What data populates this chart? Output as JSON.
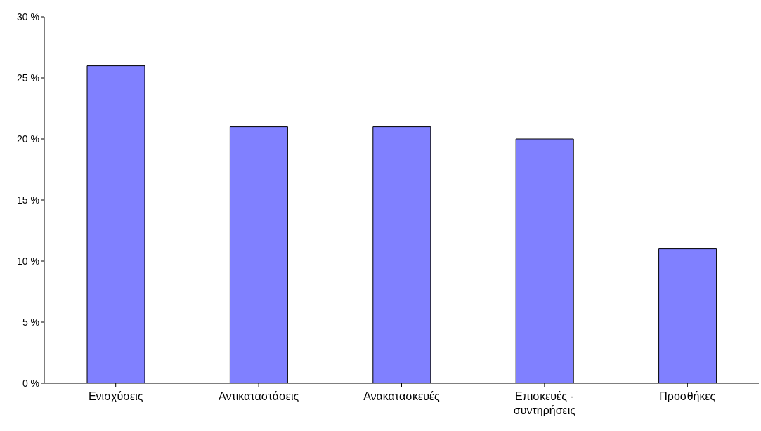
{
  "chart_data": {
    "type": "bar",
    "categories": [
      "Ενισχύσεις",
      "Αντικαταστάσεις",
      "Ανακατασκευές",
      "Επισκευές - συντηρήσεις",
      "Προσθήκες"
    ],
    "values": [
      26,
      21,
      21,
      20,
      11
    ],
    "color": "#8080ff",
    "ylim": [
      0,
      30
    ],
    "yticks": [
      {
        "value": 0,
        "label": "0 %"
      },
      {
        "value": 5,
        "label": "5 %"
      },
      {
        "value": 10,
        "label": "10 %"
      },
      {
        "value": 15,
        "label": "15 %"
      },
      {
        "value": 20,
        "label": "20 %"
      },
      {
        "value": 25,
        "label": "25 %"
      },
      {
        "value": 30,
        "label": "30 %"
      }
    ],
    "grid": false,
    "legend": false
  }
}
